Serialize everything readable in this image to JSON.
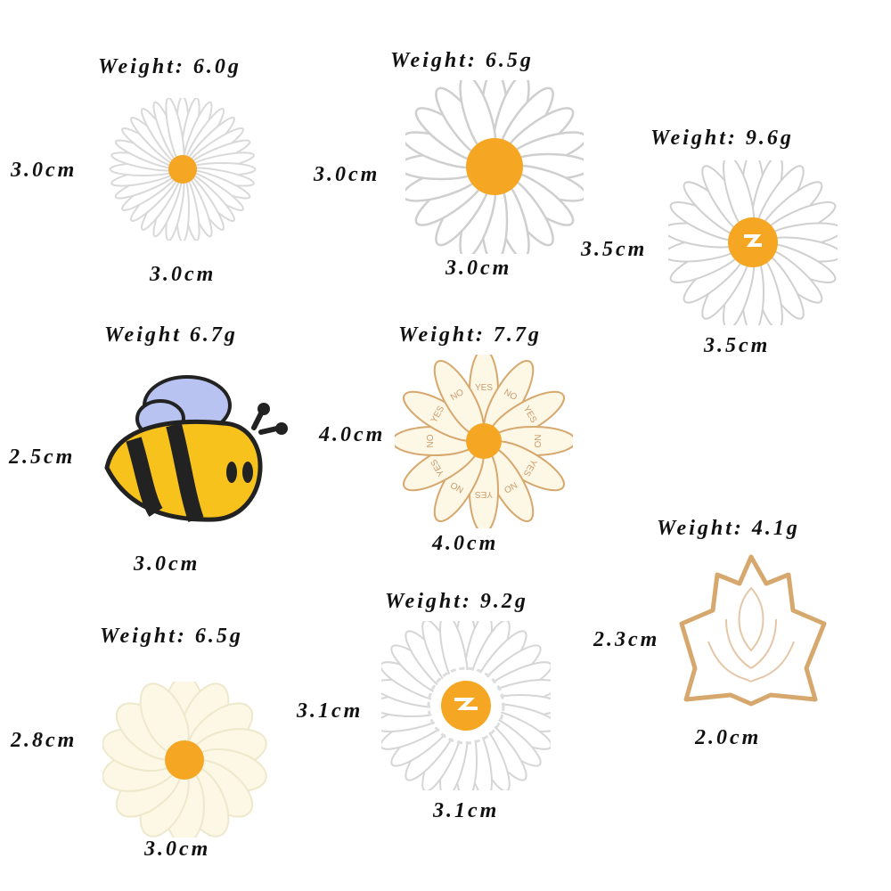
{
  "pins": [
    {
      "weight": "Weight: 6.0g",
      "height": "3.0cm",
      "width": "3.0cm"
    },
    {
      "weight": "Weight: 6.5g",
      "height": "3.0cm",
      "width": "3.0cm"
    },
    {
      "weight": "Weight: 9.6g",
      "height": "3.5cm",
      "width": "3.5cm"
    },
    {
      "weight": "Weight 6.7g",
      "height": "2.5cm",
      "width": "3.0cm"
    },
    {
      "weight": "Weight: 7.7g",
      "height": "4.0cm",
      "width": "4.0cm"
    },
    {
      "weight": "Weight: 4.1g",
      "height": "2.3cm",
      "width": "2.0cm"
    },
    {
      "weight": "Weight: 6.5g",
      "height": "2.8cm",
      "width": "3.0cm"
    },
    {
      "weight": "Weight: 9.2g",
      "height": "3.1cm",
      "width": "3.1cm"
    }
  ],
  "petal_text": [
    "YES",
    "NO"
  ],
  "colors": {
    "center": "#f5a623",
    "bee_yellow": "#f7c21b",
    "bee_wing": "#b9c3f2",
    "cream": "#fdf7e6",
    "outline": "#d9d9d9",
    "gold": "#d7a86e"
  }
}
